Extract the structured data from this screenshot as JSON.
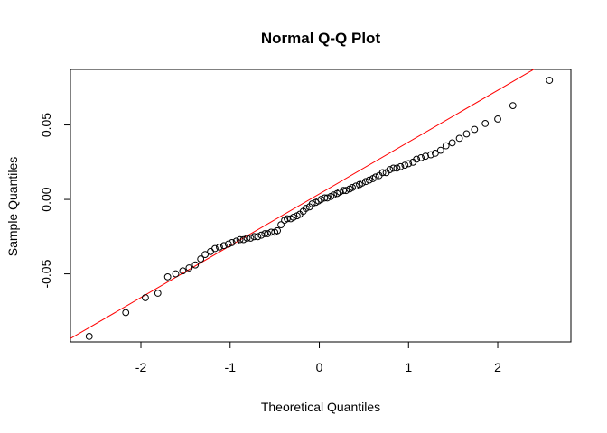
{
  "chart_data": {
    "type": "scatter",
    "title": "Normal Q-Q Plot",
    "xlabel": "Theoretical Quantiles",
    "ylabel": "Sample Quantiles",
    "xlim": [
      -2.79,
      2.82
    ],
    "ylim": [
      -0.0957,
      0.0873
    ],
    "x_ticks": [
      -2,
      -1,
      0,
      1,
      2
    ],
    "x_tick_labels": [
      "-2",
      "-1",
      "0",
      "1",
      "2"
    ],
    "y_ticks": [
      -0.05,
      0.0,
      0.05
    ],
    "y_tick_labels": [
      "-0.05",
      "0.00",
      "0.05"
    ],
    "grid": false,
    "legend": "none",
    "reference_line": {
      "color": "#ff0000",
      "intercept": 0.0037,
      "slope": 0.0348
    },
    "point_color": "#000000",
    "x": [
      -2.58,
      -2.17,
      -1.95,
      -1.81,
      -1.7,
      -1.61,
      -1.53,
      -1.46,
      -1.39,
      -1.33,
      -1.28,
      -1.22,
      -1.17,
      -1.12,
      -1.07,
      -1.02,
      -0.98,
      -0.93,
      -0.89,
      -0.85,
      -0.81,
      -0.77,
      -0.73,
      -0.69,
      -0.65,
      -0.61,
      -0.58,
      -0.54,
      -0.5,
      -0.47,
      -0.43,
      -0.39,
      -0.36,
      -0.32,
      -0.29,
      -0.25,
      -0.22,
      -0.18,
      -0.15,
      -0.11,
      -0.08,
      -0.04,
      -0.01,
      0.02,
      0.06,
      0.09,
      0.13,
      0.16,
      0.2,
      0.23,
      0.27,
      0.3,
      0.34,
      0.37,
      0.41,
      0.45,
      0.48,
      0.52,
      0.56,
      0.6,
      0.63,
      0.67,
      0.71,
      0.75,
      0.79,
      0.83,
      0.87,
      0.91,
      0.96,
      1.0,
      1.05,
      1.09,
      1.14,
      1.19,
      1.25,
      1.3,
      1.36,
      1.42,
      1.49,
      1.57,
      1.65,
      1.74,
      1.86,
      2.0,
      2.17,
      2.58
    ],
    "y": [
      -0.092,
      -0.076,
      -0.066,
      -0.063,
      -0.052,
      -0.05,
      -0.048,
      -0.046,
      -0.044,
      -0.04,
      -0.037,
      -0.035,
      -0.033,
      -0.032,
      -0.031,
      -0.03,
      -0.029,
      -0.028,
      -0.027,
      -0.027,
      -0.026,
      -0.026,
      -0.025,
      -0.025,
      -0.024,
      -0.023,
      -0.023,
      -0.022,
      -0.022,
      -0.021,
      -0.017,
      -0.014,
      -0.013,
      -0.013,
      -0.012,
      -0.011,
      -0.01,
      -0.008,
      -0.006,
      -0.005,
      -0.003,
      -0.002,
      -0.001,
      0.0,
      0.001,
      0.001,
      0.002,
      0.003,
      0.004,
      0.005,
      0.006,
      0.006,
      0.007,
      0.008,
      0.009,
      0.01,
      0.011,
      0.012,
      0.013,
      0.014,
      0.015,
      0.016,
      0.018,
      0.018,
      0.02,
      0.021,
      0.021,
      0.022,
      0.023,
      0.024,
      0.025,
      0.027,
      0.028,
      0.029,
      0.03,
      0.031,
      0.033,
      0.036,
      0.038,
      0.041,
      0.044,
      0.047,
      0.051,
      0.054,
      0.063,
      0.08
    ]
  }
}
